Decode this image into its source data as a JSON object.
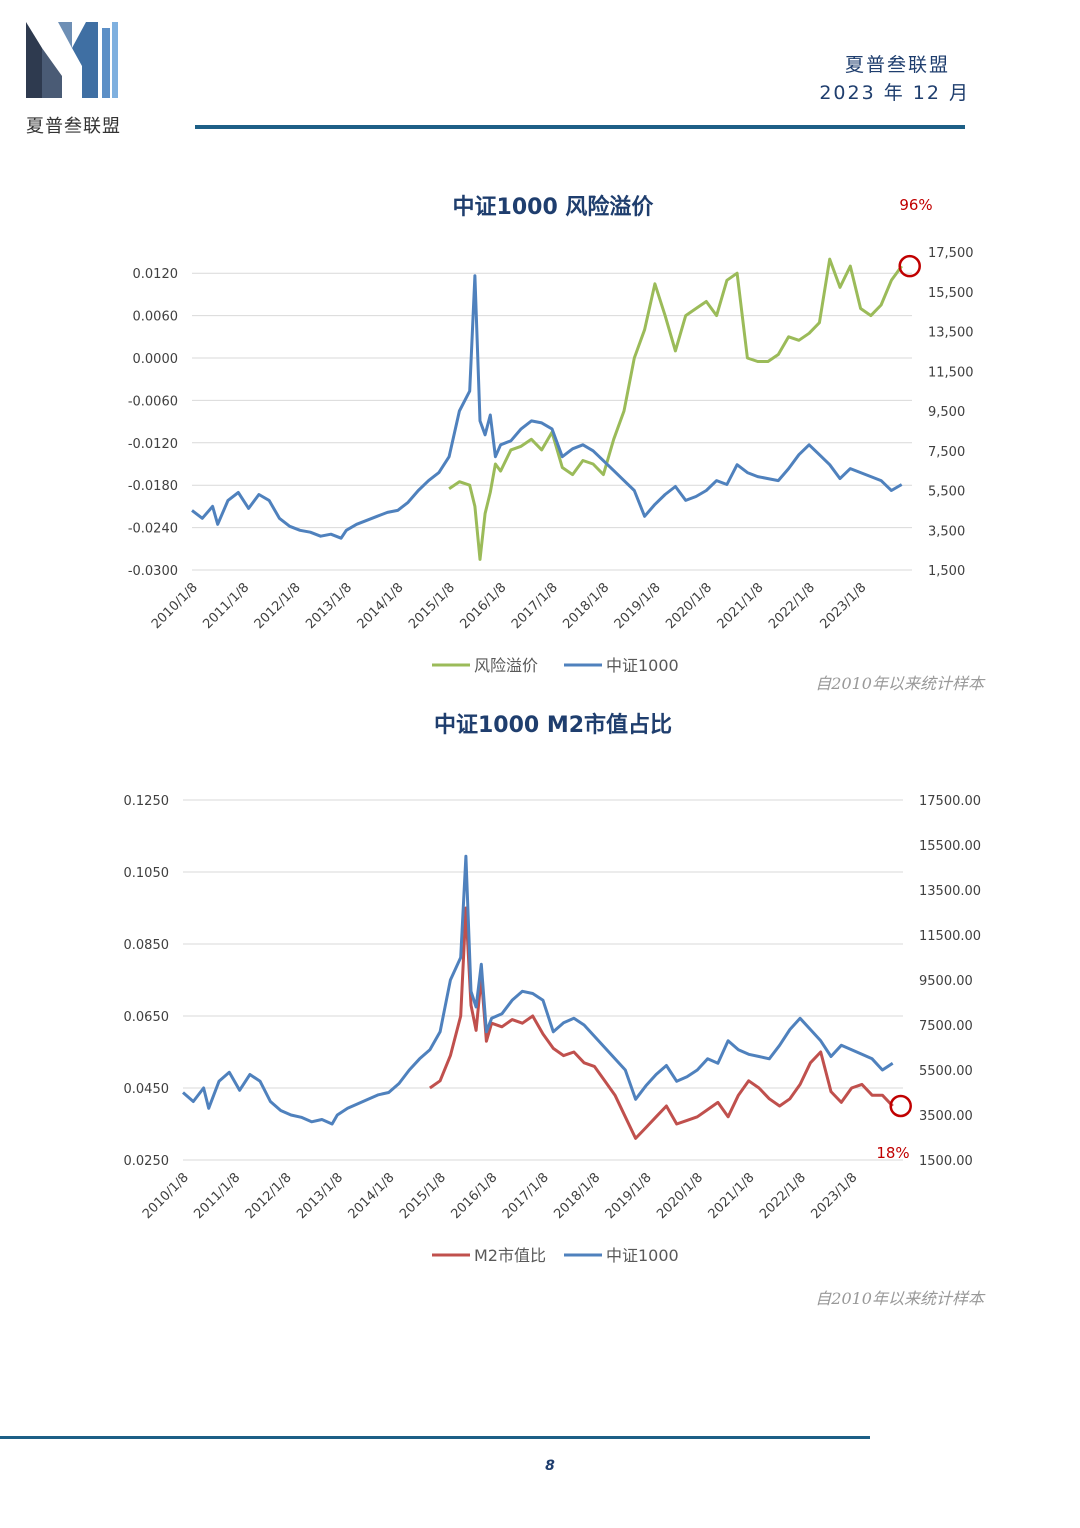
{
  "header": {
    "logo_text": "夏普叁联盟",
    "brand": "夏普叁联盟",
    "date": "2023  年  12  月"
  },
  "footer": {
    "page_number": "8"
  },
  "colors": {
    "navy": "#1f3e6e",
    "green": "#9bbb59",
    "blue": "#4f81bd",
    "red": "#c0504d",
    "rule": "#1d5f86",
    "highlight": "#c00000"
  },
  "chart_data": [
    {
      "type": "line",
      "title": "中证1000    风险溢价",
      "annotation": "96%",
      "source_note": "自2010年以来统计样本",
      "x_tick_labels": [
        "2010/1/8",
        "2011/1/8",
        "2012/1/8",
        "2013/1/8",
        "2014/1/8",
        "2015/1/8",
        "2016/1/8",
        "2017/1/8",
        "2018/1/8",
        "2019/1/8",
        "2020/1/8",
        "2021/1/8",
        "2022/1/8",
        "2023/1/8"
      ],
      "y_left": {
        "ticks": [
          "0.0120",
          "0.0060",
          "0.0000",
          "-0.0060",
          "-0.0120",
          "-0.0180",
          "-0.0240",
          "-0.0300"
        ],
        "range": [
          -0.03,
          0.015
        ]
      },
      "y_right": {
        "ticks": [
          "17,500",
          "15,500",
          "13,500",
          "11,500",
          "9,500",
          "7,500",
          "5,500",
          "3,500",
          "1,500"
        ],
        "range": [
          1500,
          17500
        ]
      },
      "legend": [
        "风险溢价",
        "中证1000"
      ],
      "series": [
        {
          "name": "风险溢价",
          "axis": "left",
          "color": "#9bbb59",
          "x": [
            5.0,
            5.2,
            5.4,
            5.5,
            5.6,
            5.7,
            5.8,
            5.9,
            6.0,
            6.2,
            6.4,
            6.6,
            6.8,
            7.0,
            7.2,
            7.4,
            7.6,
            7.8,
            8.0,
            8.2,
            8.4,
            8.6,
            8.8,
            9.0,
            9.2,
            9.4,
            9.6,
            9.8,
            10.0,
            10.2,
            10.4,
            10.6,
            10.8,
            11.0,
            11.2,
            11.4,
            11.6,
            11.8,
            12.0,
            12.2,
            12.4,
            12.6,
            12.8,
            13.0,
            13.2,
            13.4,
            13.6,
            13.8
          ],
          "values": [
            -0.0185,
            -0.0175,
            -0.018,
            -0.021,
            -0.0285,
            -0.022,
            -0.019,
            -0.015,
            -0.016,
            -0.013,
            -0.0125,
            -0.0115,
            -0.013,
            -0.0105,
            -0.0155,
            -0.0165,
            -0.0145,
            -0.015,
            -0.0165,
            -0.0115,
            -0.0075,
            0.0,
            0.004,
            0.0105,
            0.006,
            0.001,
            0.006,
            0.007,
            0.008,
            0.006,
            0.011,
            0.012,
            0.0,
            -0.0005,
            -0.0005,
            0.0005,
            0.003,
            0.0025,
            0.0035,
            0.005,
            0.014,
            0.01,
            0.013,
            0.007,
            0.006,
            0.0075,
            0.011,
            0.013
          ]
        },
        {
          "name": "中证1000",
          "axis": "right",
          "color": "#4f81bd",
          "x": [
            0.0,
            0.2,
            0.4,
            0.5,
            0.7,
            0.9,
            1.1,
            1.3,
            1.5,
            1.7,
            1.9,
            2.1,
            2.3,
            2.5,
            2.7,
            2.9,
            3.0,
            3.2,
            3.4,
            3.6,
            3.8,
            4.0,
            4.2,
            4.4,
            4.6,
            4.8,
            5.0,
            5.2,
            5.4,
            5.5,
            5.6,
            5.7,
            5.8,
            5.9,
            6.0,
            6.2,
            6.4,
            6.6,
            6.8,
            7.0,
            7.2,
            7.4,
            7.6,
            7.8,
            8.0,
            8.2,
            8.4,
            8.6,
            8.8,
            9.0,
            9.2,
            9.4,
            9.6,
            9.8,
            10.0,
            10.2,
            10.4,
            10.6,
            10.8,
            11.0,
            11.2,
            11.4,
            11.6,
            11.8,
            12.0,
            12.2,
            12.4,
            12.6,
            12.8,
            13.0,
            13.2,
            13.4,
            13.6,
            13.8
          ],
          "values": [
            4500,
            4100,
            4700,
            3800,
            5000,
            5400,
            4600,
            5300,
            5000,
            4100,
            3700,
            3500,
            3400,
            3200,
            3300,
            3100,
            3500,
            3800,
            4000,
            4200,
            4400,
            4500,
            4900,
            5500,
            6000,
            6400,
            7200,
            9500,
            10500,
            16300,
            9000,
            8300,
            9300,
            7200,
            7800,
            8000,
            8600,
            9000,
            8900,
            8600,
            7200,
            7600,
            7800,
            7500,
            7000,
            6500,
            6000,
            5500,
            4200,
            4800,
            5300,
            5700,
            5000,
            5200,
            5500,
            6000,
            5800,
            6800,
            6400,
            6200,
            6100,
            6000,
            6600,
            7300,
            7800,
            7300,
            6800,
            6100,
            6600,
            6400,
            6200,
            6000,
            5500,
            5800
          ]
        }
      ]
    },
    {
      "type": "line",
      "title": "中证1000    M2市值占比",
      "annotation": "18%",
      "source_note": "自2010年以来统计样本",
      "x_tick_labels": [
        "2010/1/8",
        "2011/1/8",
        "2012/1/8",
        "2013/1/8",
        "2014/1/8",
        "2015/1/8",
        "2016/1/8",
        "2017/1/8",
        "2018/1/8",
        "2019/1/8",
        "2020/1/8",
        "2021/1/8",
        "2022/1/8",
        "2023/1/8"
      ],
      "y_left": {
        "ticks": [
          "0.1250",
          "0.1050",
          "0.0850",
          "0.0650",
          "0.0450",
          "0.0250"
        ],
        "range": [
          0.025,
          0.125
        ]
      },
      "y_right": {
        "ticks": [
          "17500.00",
          "15500.00",
          "13500.00",
          "11500.00",
          "9500.00",
          "7500.00",
          "5500.00",
          "3500.00",
          "1500.00"
        ],
        "range": [
          1500,
          17500
        ]
      },
      "legend": [
        "M2市值比",
        "中证1000"
      ],
      "series": [
        {
          "name": "M2市值比",
          "axis": "left",
          "color": "#c0504d",
          "x": [
            4.8,
            5.0,
            5.2,
            5.4,
            5.5,
            5.6,
            5.7,
            5.8,
            5.9,
            6.0,
            6.2,
            6.4,
            6.6,
            6.8,
            7.0,
            7.2,
            7.4,
            7.6,
            7.8,
            8.0,
            8.2,
            8.4,
            8.6,
            8.8,
            9.0,
            9.2,
            9.4,
            9.6,
            9.8,
            10.0,
            10.2,
            10.4,
            10.6,
            10.8,
            11.0,
            11.2,
            11.4,
            11.6,
            11.8,
            12.0,
            12.2,
            12.4,
            12.6,
            12.8,
            13.0,
            13.2,
            13.4,
            13.6,
            13.8
          ],
          "values": [
            0.045,
            0.047,
            0.054,
            0.065,
            0.095,
            0.068,
            0.061,
            0.076,
            0.058,
            0.063,
            0.062,
            0.064,
            0.063,
            0.065,
            0.06,
            0.056,
            0.054,
            0.055,
            0.052,
            0.051,
            0.047,
            0.043,
            0.037,
            0.031,
            0.034,
            0.037,
            0.04,
            0.035,
            0.036,
            0.037,
            0.039,
            0.041,
            0.037,
            0.043,
            0.047,
            0.045,
            0.042,
            0.04,
            0.042,
            0.046,
            0.052,
            0.055,
            0.044,
            0.041,
            0.045,
            0.046,
            0.043,
            0.043,
            0.04
          ]
        },
        {
          "name": "中证1000",
          "axis": "right",
          "color": "#4f81bd",
          "x": [
            0.0,
            0.2,
            0.4,
            0.5,
            0.7,
            0.9,
            1.1,
            1.3,
            1.5,
            1.7,
            1.9,
            2.1,
            2.3,
            2.5,
            2.7,
            2.9,
            3.0,
            3.2,
            3.4,
            3.6,
            3.8,
            4.0,
            4.2,
            4.4,
            4.6,
            4.8,
            5.0,
            5.2,
            5.4,
            5.5,
            5.6,
            5.7,
            5.8,
            5.9,
            6.0,
            6.2,
            6.4,
            6.6,
            6.8,
            7.0,
            7.2,
            7.4,
            7.6,
            7.8,
            8.0,
            8.2,
            8.4,
            8.6,
            8.8,
            9.0,
            9.2,
            9.4,
            9.6,
            9.8,
            10.0,
            10.2,
            10.4,
            10.6,
            10.8,
            11.0,
            11.2,
            11.4,
            11.6,
            11.8,
            12.0,
            12.2,
            12.4,
            12.6,
            12.8,
            13.0,
            13.2,
            13.4,
            13.6,
            13.8
          ],
          "values": [
            4500,
            4100,
            4700,
            3800,
            5000,
            5400,
            4600,
            5300,
            5000,
            4100,
            3700,
            3500,
            3400,
            3200,
            3300,
            3100,
            3500,
            3800,
            4000,
            4200,
            4400,
            4500,
            4900,
            5500,
            6000,
            6400,
            7200,
            9500,
            10500,
            15000,
            9000,
            8300,
            10200,
            7200,
            7800,
            8000,
            8600,
            9000,
            8900,
            8600,
            7200,
            7600,
            7800,
            7500,
            7000,
            6500,
            6000,
            5500,
            4200,
            4800,
            5300,
            5700,
            5000,
            5200,
            5500,
            6000,
            5800,
            6800,
            6400,
            6200,
            6100,
            6000,
            6600,
            7300,
            7800,
            7300,
            6800,
            6100,
            6600,
            6400,
            6200,
            6000,
            5500,
            5800
          ]
        }
      ]
    }
  ]
}
